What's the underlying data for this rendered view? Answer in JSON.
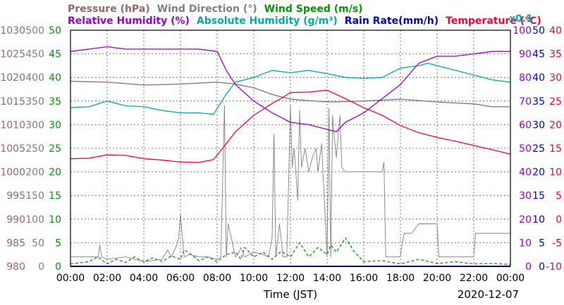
{
  "chart_data": {
    "type": "line",
    "date": "2020-12-07",
    "xlabel": "Time (JST)",
    "x_ticks": [
      "00:00",
      "02:00",
      "04:00",
      "06:00",
      "08:00",
      "10:00",
      "12:00",
      "14:00",
      "16:00",
      "18:00",
      "20:00",
      "22:00",
      "00:00"
    ],
    "xlim": [
      0,
      24
    ],
    "grid": true,
    "legend": [
      {
        "key": "pressure",
        "label": "Pressure (hPa)",
        "color": "#996666"
      },
      {
        "key": "wind_dir",
        "label": "Wind Direction (°)",
        "color": "#808080"
      },
      {
        "key": "wind_speed",
        "label": "Wind Speed (m/s)",
        "color": "#009900"
      },
      {
        "key": "rh",
        "label": "Relative Humidity (%)",
        "color": "#9900cc"
      },
      {
        "key": "abs_hum",
        "label": "Absolute Humidity (g/m³)",
        "color": "#00aaaa"
      },
      {
        "key": "rain",
        "label": "Rain Rate(mm/h)",
        "color": "#0000cc"
      },
      {
        "key": "temp",
        "label": "Temperature (°C)",
        "color": "#ff0033"
      }
    ],
    "abs_hum_scale_label": "x0.1",
    "axes": {
      "pressure": {
        "color": "#996666",
        "ylim": [
          980,
          1030
        ],
        "ticks": [
          "1030",
          "1025",
          "1020",
          "1015",
          "1010",
          "1005",
          "1000",
          "995",
          "990",
          "985",
          "980"
        ]
      },
      "wind_dir": {
        "color": "#808080",
        "ylim": [
          0,
          500
        ],
        "ticks": [
          "500",
          "450",
          "400",
          "350",
          "300",
          "250",
          "200",
          "150",
          "100",
          "50",
          "0"
        ]
      },
      "wind_speed": {
        "color": "#009900",
        "ylim": [
          0,
          50
        ],
        "ticks": [
          "50",
          "45",
          "40",
          "35",
          "30",
          "25",
          "20",
          "15",
          "10",
          "5",
          "0"
        ]
      },
      "rh": {
        "color": "#9900cc",
        "ylim": [
          0,
          100
        ],
        "ticks": [
          "100",
          "90",
          "80",
          "70",
          "60",
          "50",
          "40",
          "30",
          "20",
          "10",
          "0"
        ]
      },
      "rain": {
        "color": "#0000cc",
        "ylim": [
          0,
          50
        ],
        "ticks": [
          "50",
          "45",
          "40",
          "35",
          "30",
          "25",
          "20",
          "15",
          "10",
          "5",
          "0"
        ]
      },
      "temp": {
        "color": "#ff0033",
        "ylim": [
          -10,
          40
        ],
        "ticks": [
          "40",
          "35",
          "30",
          "25",
          "20",
          "15",
          "10",
          "5",
          "0",
          "-5",
          "-10"
        ]
      }
    },
    "series": [
      {
        "name": "Pressure (hPa)",
        "axis": "pressure",
        "color": "#996666",
        "x": [
          0,
          2,
          4,
          6,
          8,
          9,
          10,
          11,
          12,
          14,
          16,
          18,
          20,
          21,
          22,
          23,
          24
        ],
        "y": [
          1019.2,
          1019.0,
          1018.4,
          1018.6,
          1019.0,
          1018.6,
          1017.8,
          1016.4,
          1015.4,
          1014.8,
          1015.0,
          1015.4,
          1014.8,
          1014.6,
          1014.4,
          1013.8,
          1013.8
        ]
      },
      {
        "name": "Temperature (°C)",
        "axis": "temp",
        "color": "#ff0033",
        "x": [
          0,
          1,
          2,
          3,
          4,
          5,
          6,
          7,
          7.8,
          8.5,
          9,
          10,
          11,
          11.5,
          12,
          13,
          14,
          15,
          16,
          17,
          18,
          19,
          20,
          21,
          22,
          23,
          24
        ],
        "y": [
          12.8,
          12.9,
          13.6,
          13.5,
          12.8,
          12.5,
          12.1,
          12.0,
          12.6,
          16.0,
          18.5,
          22.0,
          24.5,
          25.6,
          26.8,
          26.9,
          27.3,
          25.5,
          23.6,
          22.0,
          19.8,
          18.3,
          17.3,
          16.5,
          15.6,
          14.7,
          13.8
        ]
      },
      {
        "name": "Relative Humidity (%)",
        "axis": "rh",
        "color": "#9900cc",
        "x": [
          0,
          1,
          2,
          3,
          4,
          5,
          6,
          7,
          8,
          8.5,
          9,
          10,
          11,
          12,
          13,
          14,
          14.5,
          15,
          16,
          17,
          18,
          19,
          20,
          21,
          22,
          23,
          24
        ],
        "y": [
          91,
          92,
          93,
          92,
          92,
          92,
          92,
          92,
          91,
          83,
          77,
          70,
          65,
          61,
          60,
          58,
          57,
          61,
          65,
          71,
          77,
          86,
          89,
          89,
          90,
          91,
          91
        ]
      },
      {
        "name": "Absolute Humidity (x0.1 g/m³)",
        "axis": "wind_speed",
        "color": "#00aaaa",
        "x": [
          0,
          1,
          2,
          3,
          4,
          5,
          6,
          7,
          7.8,
          8.5,
          9,
          10,
          11,
          12,
          13,
          14,
          15,
          16,
          17,
          18,
          19,
          19.5,
          20,
          21,
          22,
          23,
          24
        ],
        "y": [
          33.6,
          33.8,
          35.0,
          34.0,
          33.8,
          33.0,
          32.5,
          32.5,
          32.2,
          36.5,
          39.0,
          40.0,
          41.5,
          41.0,
          41.5,
          40.8,
          40.0,
          39.8,
          40.0,
          42.0,
          42.5,
          43.0,
          42.5,
          41.5,
          40.5,
          39.5,
          39.0
        ]
      },
      {
        "name": "Wind Direction (°)",
        "axis": "wind_dir",
        "color": "#808080",
        "x": [
          0,
          1.5,
          1.6,
          1.7,
          2,
          3,
          4,
          5,
          5.3,
          5.5,
          5.8,
          5.9,
          6,
          6.2,
          6.5,
          7,
          7.5,
          8,
          8.2,
          8.4,
          8.5,
          8.6,
          9,
          9.2,
          9.3,
          9.5,
          10,
          10.5,
          10.8,
          11,
          11.1,
          11.2,
          11.4,
          11.6,
          11.8,
          12,
          12.1,
          12.2,
          12.4,
          12.5,
          12.6,
          12.8,
          13,
          13.2,
          13.4,
          13.5,
          13.7,
          14,
          14.1,
          14.2,
          14.3,
          14.4,
          14.5,
          14.7,
          14.8,
          15,
          15.5,
          16,
          16.5,
          17,
          17.1,
          17.2,
          17.5,
          18,
          18.1,
          18.2,
          18.6,
          19,
          20,
          20.1,
          20.2,
          21,
          22,
          22.1,
          22.5,
          23,
          24
        ],
        "y": [
          20,
          20,
          45,
          20,
          15,
          20,
          10,
          15,
          35,
          20,
          45,
          60,
          110,
          20,
          25,
          20,
          20,
          15,
          20,
          340,
          20,
          90,
          20,
          30,
          40,
          20,
          30,
          25,
          20,
          60,
          280,
          20,
          90,
          20,
          20,
          340,
          210,
          250,
          140,
          330,
          210,
          250,
          200,
          230,
          250,
          200,
          260,
          20,
          335,
          20,
          320,
          270,
          230,
          320,
          210,
          200,
          200,
          200,
          200,
          200,
          220,
          20,
          20,
          20,
          50,
          70,
          70,
          90,
          90,
          20,
          20,
          20,
          20,
          70,
          70,
          70,
          70
        ]
      },
      {
        "name": "Wind Speed (m/s)",
        "axis": "wind_speed",
        "color": "#009900",
        "x": [
          0,
          1,
          1.5,
          2,
          2.5,
          3,
          3.5,
          4,
          4.5,
          5,
          5.5,
          6,
          6.2,
          6.5,
          7,
          7.5,
          8,
          8.5,
          9,
          9.3,
          9.5,
          10,
          10.5,
          11,
          11.5,
          12,
          12.5,
          13,
          13.5,
          14,
          14.2,
          14.5,
          15,
          15.5,
          16,
          17,
          18,
          19,
          20,
          21,
          22,
          23,
          24
        ],
        "y": [
          0.5,
          1.0,
          2.0,
          0.5,
          1.5,
          0.8,
          2.0,
          1.0,
          1.8,
          1.0,
          2.2,
          1.5,
          3.5,
          2.8,
          1.2,
          2.0,
          1.0,
          2.5,
          3.0,
          1.5,
          4.0,
          2.0,
          3.0,
          1.5,
          3.2,
          2.0,
          5.0,
          2.0,
          4.0,
          2.5,
          4.5,
          3.0,
          6.0,
          3.0,
          1.0,
          1.2,
          0.5,
          1.5,
          0.6,
          1.0,
          0.5,
          0.6,
          0.4
        ]
      },
      {
        "name": "Rain Rate(mm/h)",
        "axis": "rain",
        "color": "#0000cc",
        "x": [
          0,
          24
        ],
        "y": [
          0,
          0
        ]
      }
    ]
  }
}
